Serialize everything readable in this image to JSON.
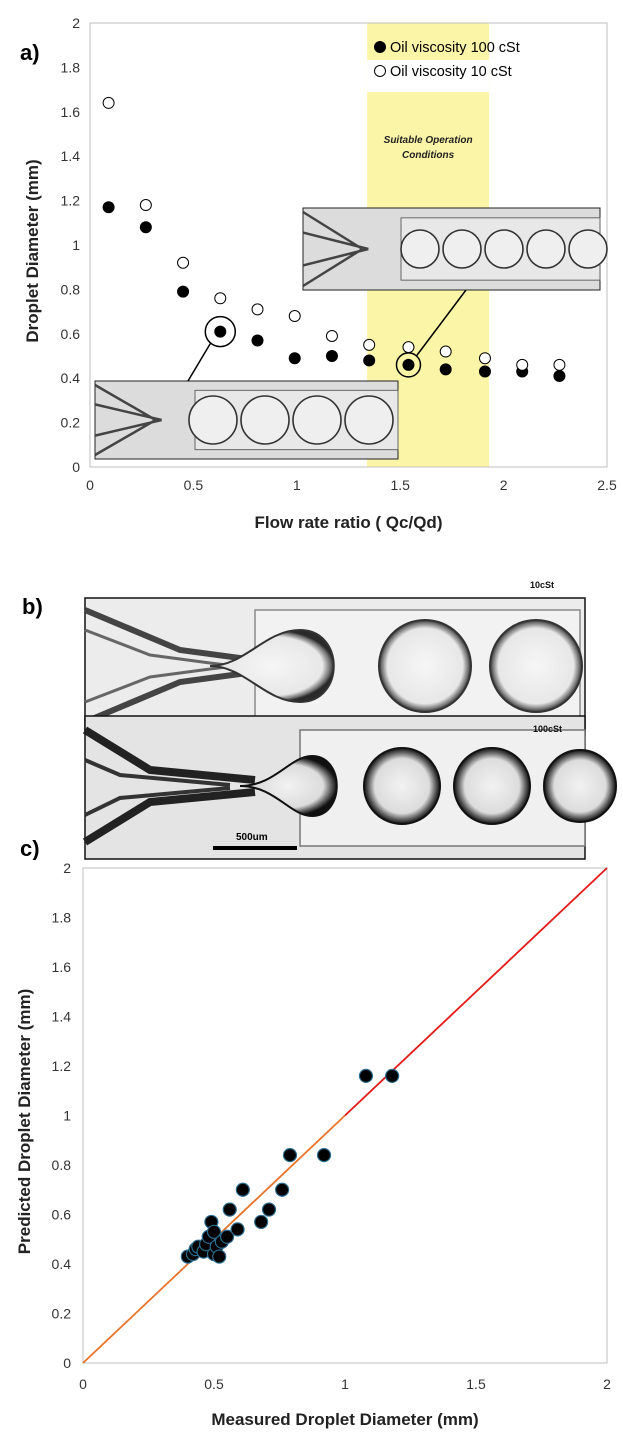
{
  "panel_labels": [
    "a)",
    "b)",
    "c)"
  ],
  "chart_data": [
    {
      "type": "scatter",
      "title": "",
      "xlabel": "Flow rate ratio ( Qc/Qd)",
      "ylabel": "Droplet Diameter (mm)",
      "xlim": [
        0,
        2.5
      ],
      "ylim": [
        0,
        2
      ],
      "xticks": [
        "0",
        "0.5",
        "1",
        "1.5",
        "2",
        "2.5"
      ],
      "yticks": [
        "0",
        "0.2",
        "0.4",
        "0.6",
        "0.8",
        "1",
        "1.2",
        "1.4",
        "1.6",
        "1.8",
        "2"
      ],
      "grid": false,
      "legend": "top-right",
      "series": [
        {
          "name": "Oil viscosity 100 cSt",
          "marker": "filled-circle",
          "color": "#000000",
          "points": [
            [
              0.09,
              1.17
            ],
            [
              0.27,
              1.08
            ],
            [
              0.45,
              0.79
            ],
            [
              0.63,
              0.61
            ],
            [
              0.81,
              0.57
            ],
            [
              0.99,
              0.49
            ],
            [
              1.17,
              0.5
            ],
            [
              1.35,
              0.48
            ],
            [
              1.54,
              0.46
            ],
            [
              1.72,
              0.44
            ],
            [
              1.91,
              0.43
            ],
            [
              2.09,
              0.43
            ],
            [
              2.27,
              0.41
            ]
          ]
        },
        {
          "name": "Oil viscosity 10 cSt",
          "marker": "open-circle",
          "color": "#000000",
          "points": [
            [
              0.09,
              1.64
            ],
            [
              0.27,
              1.18
            ],
            [
              0.45,
              0.92
            ],
            [
              0.63,
              0.76
            ],
            [
              0.81,
              0.71
            ],
            [
              0.99,
              0.68
            ],
            [
              1.17,
              0.59
            ],
            [
              1.35,
              0.55
            ],
            [
              1.54,
              0.54
            ],
            [
              1.72,
              0.52
            ],
            [
              1.91,
              0.49
            ],
            [
              2.09,
              0.46
            ],
            [
              2.27,
              0.46
            ]
          ]
        }
      ],
      "shaded_region": {
        "x": [
          1.34,
          1.93
        ],
        "color": "#fbf5a8",
        "label_lines": [
          "Suitable Operation",
          "Conditions"
        ]
      },
      "highlighted_points": [
        [
          0.63,
          0.61
        ],
        [
          1.54,
          0.46
        ]
      ]
    },
    {
      "type": "scatter",
      "title": "",
      "xlabel": "Measured Droplet Diameter (mm)",
      "ylabel": "Predicted Droplet Diameter (mm)",
      "xlim": [
        0,
        2
      ],
      "ylim": [
        0,
        2
      ],
      "xticks": [
        "0",
        "0.5",
        "1",
        "1.5",
        "2"
      ],
      "yticks": [
        "0",
        "0.2",
        "0.4",
        "0.6",
        "0.8",
        "1",
        "1.2",
        "1.4",
        "1.6",
        "1.8",
        "2"
      ],
      "grid": false,
      "marker_color": "#000000",
      "marker_edge": "#2b6c8f",
      "points": [
        [
          0.4,
          0.43
        ],
        [
          0.42,
          0.44
        ],
        [
          0.43,
          0.46
        ],
        [
          0.44,
          0.47
        ],
        [
          0.46,
          0.45
        ],
        [
          0.47,
          0.48
        ],
        [
          0.48,
          0.51
        ],
        [
          0.49,
          0.57
        ],
        [
          0.5,
          0.44
        ],
        [
          0.5,
          0.53
        ],
        [
          0.51,
          0.47
        ],
        [
          0.52,
          0.43
        ],
        [
          0.53,
          0.49
        ],
        [
          0.55,
          0.51
        ],
        [
          0.56,
          0.62
        ],
        [
          0.59,
          0.54
        ],
        [
          0.61,
          0.7
        ],
        [
          0.68,
          0.57
        ],
        [
          0.71,
          0.62
        ],
        [
          0.76,
          0.7
        ],
        [
          0.79,
          0.84
        ],
        [
          0.92,
          0.84
        ],
        [
          1.08,
          1.16
        ],
        [
          1.18,
          1.16
        ]
      ],
      "identity_line": [
        [
          0,
          0
        ],
        [
          2,
          2
        ]
      ],
      "identity_line_colors": [
        "#e8742a",
        "#e21a1a"
      ]
    }
  ],
  "micrographs": {
    "top_label": "10cSt",
    "bottom_label": "100cSt",
    "scale_bar_label": "500um"
  }
}
